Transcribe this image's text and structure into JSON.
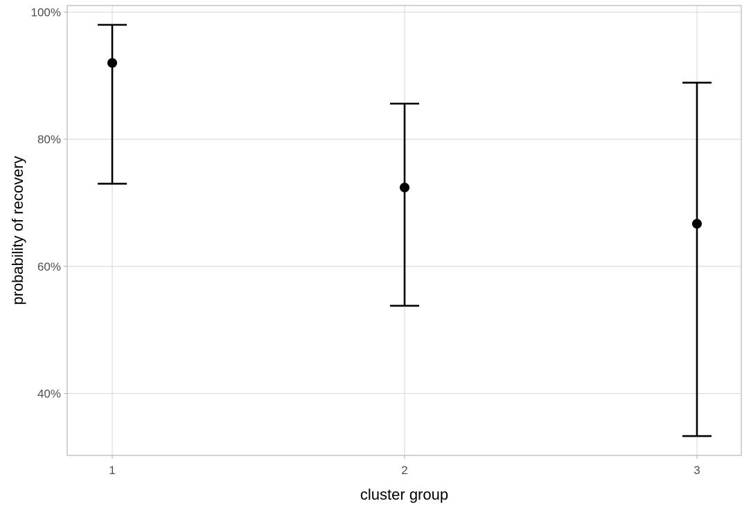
{
  "chart_data": {
    "type": "scatter",
    "subtype": "point-with-errorbars",
    "title": "",
    "xlabel": "cluster group",
    "ylabel": "probability of recovery",
    "categories": [
      "1",
      "2",
      "3"
    ],
    "points": [
      {
        "x": "1",
        "y": 0.92,
        "lower": 0.73,
        "upper": 0.98
      },
      {
        "x": "2",
        "y": 0.724,
        "lower": 0.538,
        "upper": 0.856
      },
      {
        "x": "3",
        "y": 0.667,
        "lower": 0.333,
        "upper": 0.889
      }
    ],
    "ylim": [
      0.3,
      1.0
    ],
    "yticks": [
      {
        "value": 0.4,
        "label": "40%"
      },
      {
        "value": 0.6,
        "label": "60%"
      },
      {
        "value": 0.8,
        "label": "80%"
      },
      {
        "value": 1.0,
        "label": "100%"
      }
    ],
    "grid": true,
    "legend": "none",
    "colors": {
      "marks": "#000000",
      "grid": "#d9d9d9",
      "border": "#b3b3b3"
    }
  }
}
